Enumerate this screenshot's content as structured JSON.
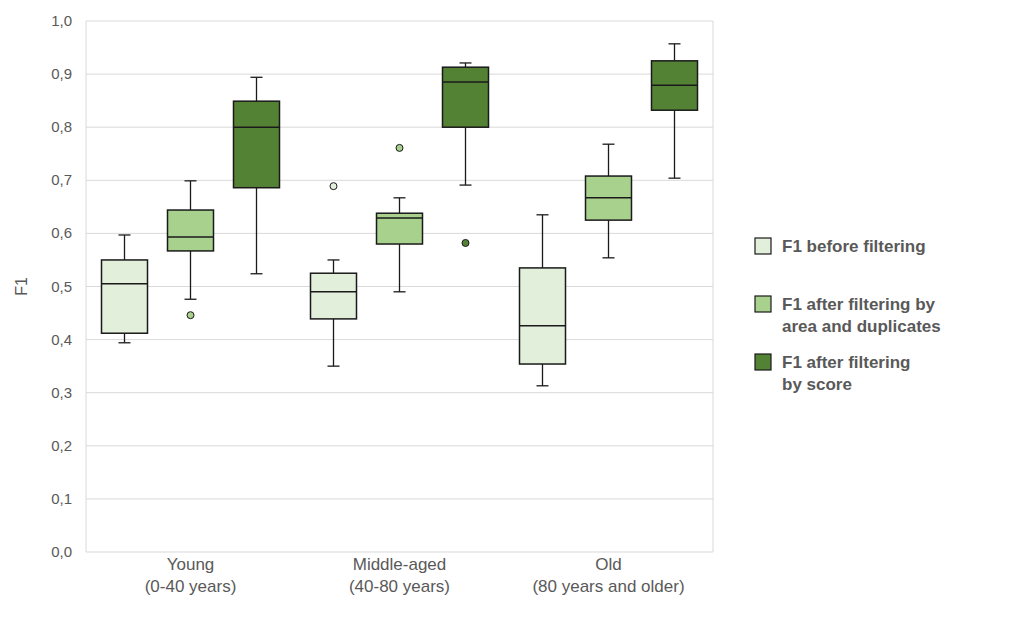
{
  "chart_data": {
    "type": "box",
    "y_label": "F1",
    "categories": [
      "Young\n(0-40 years)",
      "Middle-aged\n(40-80 years)",
      "Old\n(80 years and older)"
    ],
    "ylim": [
      0,
      1.0
    ],
    "yticks": [
      {
        "value": 0,
        "label": "0,0"
      },
      {
        "value": 0.1,
        "label": "0,1"
      },
      {
        "value": 0.2,
        "label": "0,2"
      },
      {
        "value": 0.3,
        "label": "0,3"
      },
      {
        "value": 0.4,
        "label": "0,4"
      },
      {
        "value": 0.5,
        "label": "0,5"
      },
      {
        "value": 0.6,
        "label": "0,6"
      },
      {
        "value": 0.7,
        "label": "0,7"
      },
      {
        "value": 0.8,
        "label": "0,8"
      },
      {
        "value": 0.9,
        "label": "0,9"
      },
      {
        "value": 1.0,
        "label": "1,0"
      }
    ],
    "grid": true,
    "legend": "right",
    "series": [
      {
        "name": "F1 before filtering",
        "color": "#e2efda",
        "values": [
          {
            "min": 0.394,
            "q1": 0.412,
            "median": 0.505,
            "q3": 0.55,
            "max": 0.597,
            "outliers": []
          },
          {
            "min": 0.35,
            "q1": 0.439,
            "median": 0.49,
            "q3": 0.525,
            "max": 0.55,
            "outliers": [
              0.689
            ]
          },
          {
            "min": 0.313,
            "q1": 0.354,
            "median": 0.426,
            "q3": 0.535,
            "max": 0.635,
            "outliers": []
          }
        ]
      },
      {
        "name": "F1 after filtering by\narea and duplicates",
        "color": "#a9d18e",
        "values": [
          {
            "min": 0.476,
            "q1": 0.567,
            "median": 0.593,
            "q3": 0.644,
            "max": 0.699,
            "outliers": [
              0.446
            ]
          },
          {
            "min": 0.49,
            "q1": 0.58,
            "median": 0.629,
            "q3": 0.638,
            "max": 0.667,
            "outliers": [
              0.761
            ]
          },
          {
            "min": 0.554,
            "q1": 0.625,
            "median": 0.667,
            "q3": 0.708,
            "max": 0.768,
            "outliers": []
          }
        ]
      },
      {
        "name": "F1 after filtering\nby score",
        "color": "#548235",
        "values": [
          {
            "min": 0.524,
            "q1": 0.686,
            "median": 0.8,
            "q3": 0.849,
            "max": 0.894,
            "outliers": []
          },
          {
            "min": 0.691,
            "q1": 0.8,
            "median": 0.885,
            "q3": 0.913,
            "max": 0.921,
            "outliers": [
              0.582
            ]
          },
          {
            "min": 0.704,
            "q1": 0.832,
            "median": 0.879,
            "q3": 0.925,
            "max": 0.957,
            "outliers": []
          }
        ]
      }
    ]
  }
}
